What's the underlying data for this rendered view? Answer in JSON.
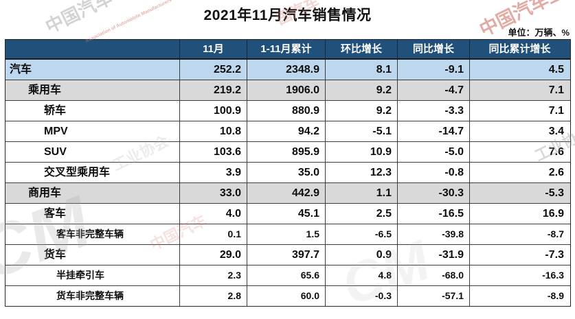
{
  "colors": {
    "header_bg": "#21507a",
    "header_text": "#ffffff",
    "total_row_bg": "#bdd7ee",
    "group_row_bg": "#d9d9d9",
    "border": "#3c3c3c"
  },
  "watermark": {
    "org_cn": "中国汽车工业协会",
    "org_en": "Association of Automobile Manufacturers",
    "f1": "中国汽车",
    "f2": "中国汽车工",
    "f3": "工业协会",
    "f4": "国汽车",
    "f5": "CM"
  },
  "chart_data": {
    "type": "table",
    "title": "2021年11月汽车销售情况",
    "unit": "单位：万辆、%",
    "columns": [
      "",
      "11月",
      "1-11月累计",
      "环比增长",
      "同比增长",
      "同比累计增长"
    ],
    "rows": [
      {
        "label": "汽车",
        "level": 0,
        "style": "total",
        "values": [
          "252.2",
          "2348.9",
          "8.1",
          "-9.1",
          "4.5"
        ]
      },
      {
        "label": "乘用车",
        "level": 1,
        "style": "group",
        "values": [
          "219.2",
          "1906.0",
          "9.2",
          "-4.7",
          "7.1"
        ]
      },
      {
        "label": "轿车",
        "level": 2,
        "style": "plain",
        "values": [
          "100.9",
          "880.9",
          "9.2",
          "-3.3",
          "7.1"
        ]
      },
      {
        "label": "MPV",
        "level": 2,
        "style": "plain",
        "values": [
          "10.8",
          "94.2",
          "-5.1",
          "-14.7",
          "3.4"
        ]
      },
      {
        "label": "SUV",
        "level": 2,
        "style": "plain",
        "values": [
          "103.6",
          "895.9",
          "10.9",
          "-5.0",
          "7.6"
        ]
      },
      {
        "label": "交叉型乘用车",
        "level": 2,
        "style": "plain",
        "values": [
          "3.9",
          "35.0",
          "12.3",
          "-0.8",
          "2.6"
        ]
      },
      {
        "label": "商用车",
        "level": 1,
        "style": "group",
        "values": [
          "33.0",
          "442.9",
          "1.1",
          "-30.3",
          "-5.3"
        ]
      },
      {
        "label": "客车",
        "level": 2,
        "style": "plain",
        "values": [
          "4.0",
          "45.1",
          "2.5",
          "-16.5",
          "16.9"
        ]
      },
      {
        "label": "客车非完整车辆",
        "level": 3,
        "style": "sub",
        "values": [
          "0.1",
          "1.5",
          "-6.5",
          "-39.8",
          "-8.7"
        ]
      },
      {
        "label": "货车",
        "level": 2,
        "style": "plain",
        "values": [
          "29.0",
          "397.7",
          "0.9",
          "-31.9",
          "-7.3"
        ]
      },
      {
        "label": "半挂牵引车",
        "level": 3,
        "style": "sub",
        "values": [
          "2.3",
          "65.6",
          "4.8",
          "-68.0",
          "-16.3"
        ]
      },
      {
        "label": "货车非完整车辆",
        "level": 3,
        "style": "sub",
        "values": [
          "2.8",
          "60.0",
          "-0.3",
          "-57.1",
          "-8.9"
        ]
      }
    ]
  }
}
